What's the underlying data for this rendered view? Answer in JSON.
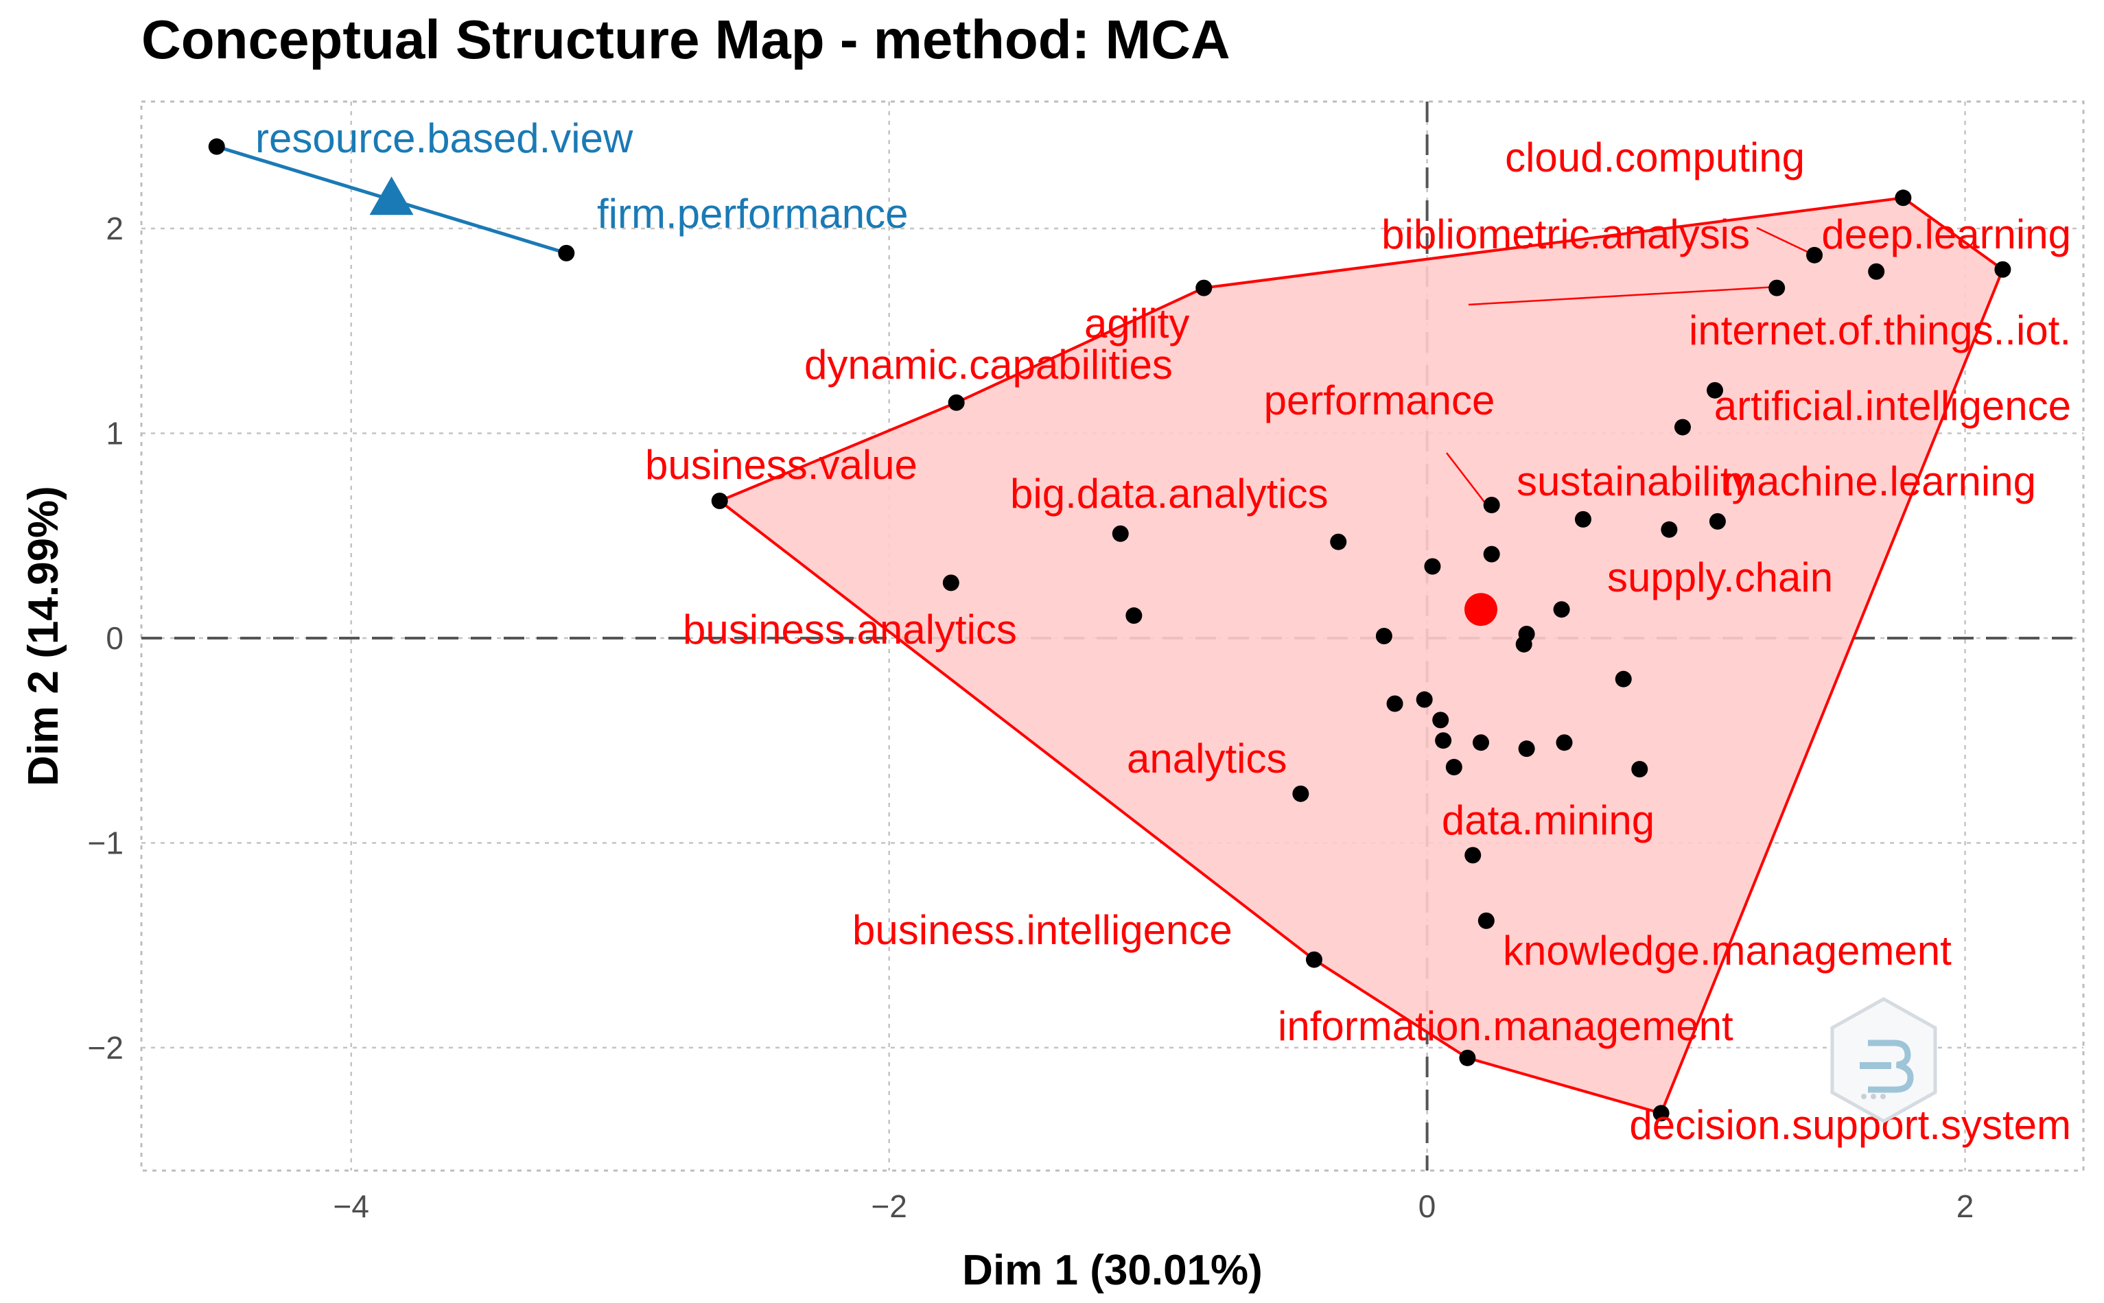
{
  "chart_data": {
    "type": "scatter",
    "title": "Conceptual Structure Map - method: MCA",
    "xlabel": "Dim 1 (30.01%)",
    "ylabel": "Dim 2 (14.99%)",
    "xlim": [
      -4.78,
      2.44
    ],
    "ylim": [
      -2.6,
      2.62
    ],
    "x_ticks": [
      -4,
      -2,
      0,
      2
    ],
    "y_ticks": [
      -2,
      -1,
      0,
      1,
      2
    ],
    "x_tick_labels": [
      "−4",
      "−2",
      "0",
      "2"
    ],
    "y_tick_labels": [
      "−2",
      "−1",
      "0",
      "1",
      "2"
    ],
    "grid": true,
    "clusters": [
      {
        "name": "cluster-red",
        "color": "#ff0000",
        "fill": "#ffcccc",
        "centroid": [
          0.2,
          0.14
        ],
        "centroid_marker": "circle",
        "hull": [
          [
            1.77,
            2.15
          ],
          [
            2.14,
            1.8
          ],
          [
            0.87,
            -2.32
          ],
          [
            0.15,
            -2.05
          ],
          [
            -0.42,
            -1.57
          ],
          [
            -2.63,
            0.67
          ],
          [
            -1.75,
            1.15
          ],
          [
            -0.83,
            1.71
          ]
        ],
        "points": [
          {
            "label": "cloud.computing",
            "x": 1.77,
            "y": 2.15
          },
          {
            "label": "bibliometric.analysis",
            "x": 1.44,
            "y": 1.87
          },
          {
            "label": "deep.learning",
            "x": 2.14,
            "y": 1.8
          },
          {
            "label": "internet.of.things..iot.",
            "x": 1.3,
            "y": 1.71
          },
          {
            "label": "",
            "x": 1.67,
            "y": 1.79
          },
          {
            "label": "agility",
            "x": -0.83,
            "y": 1.71
          },
          {
            "label": "dynamic.capabilities",
            "x": -1.75,
            "y": 1.15
          },
          {
            "label": "artificial.intelligence",
            "x": 1.07,
            "y": 1.21
          },
          {
            "label": "",
            "x": 0.95,
            "y": 1.03
          },
          {
            "label": "business.value",
            "x": -2.63,
            "y": 0.67
          },
          {
            "label": "performance",
            "x": 0.24,
            "y": 0.65
          },
          {
            "label": "sustainability",
            "x": 0.58,
            "y": 0.58
          },
          {
            "label": "machine.learning",
            "x": 1.08,
            "y": 0.57
          },
          {
            "label": "supply.chain",
            "x": 0.9,
            "y": 0.53
          },
          {
            "label": "big.data.analytics",
            "x": -1.14,
            "y": 0.51
          },
          {
            "label": "",
            "x": -0.33,
            "y": 0.47
          },
          {
            "label": "",
            "x": 0.24,
            "y": 0.41
          },
          {
            "label": "",
            "x": 0.02,
            "y": 0.35
          },
          {
            "label": "business.analytics",
            "x": -1.77,
            "y": 0.27
          },
          {
            "label": "",
            "x": 0.5,
            "y": 0.14
          },
          {
            "label": "",
            "x": -1.09,
            "y": 0.11
          },
          {
            "label": "",
            "x": -0.16,
            "y": 0.01
          },
          {
            "label": "",
            "x": 0.37,
            "y": 0.02
          },
          {
            "label": "",
            "x": 0.36,
            "y": -0.03
          },
          {
            "label": "",
            "x": 0.73,
            "y": -0.2
          },
          {
            "label": "",
            "x": -0.01,
            "y": -0.3
          },
          {
            "label": "",
            "x": -0.12,
            "y": -0.32
          },
          {
            "label": "",
            "x": 0.05,
            "y": -0.4
          },
          {
            "label": "",
            "x": 0.06,
            "y": -0.5
          },
          {
            "label": "",
            "x": 0.2,
            "y": -0.51
          },
          {
            "label": "",
            "x": 0.51,
            "y": -0.51
          },
          {
            "label": "",
            "x": 0.37,
            "y": -0.54
          },
          {
            "label": "",
            "x": 0.1,
            "y": -0.63
          },
          {
            "label": "",
            "x": 0.79,
            "y": -0.64
          },
          {
            "label": "analytics",
            "x": -0.47,
            "y": -0.76
          },
          {
            "label": "data.mining",
            "x": 0.17,
            "y": -1.06
          },
          {
            "label": "knowledge.management",
            "x": 0.22,
            "y": -1.38
          },
          {
            "label": "business.intelligence",
            "x": -0.42,
            "y": -1.57
          },
          {
            "label": "information.management",
            "x": 0.15,
            "y": -2.05
          },
          {
            "label": "decision.support.system",
            "x": 0.87,
            "y": -2.32
          }
        ]
      },
      {
        "name": "cluster-blue",
        "color": "#1a7ab5",
        "centroid": [
          -3.85,
          2.14
        ],
        "centroid_marker": "triangle",
        "hull": [
          [
            -4.5,
            2.4
          ],
          [
            -3.2,
            1.88
          ]
        ],
        "points": [
          {
            "label": "resource.based.view",
            "x": -4.5,
            "y": 2.4
          },
          {
            "label": "firm.performance",
            "x": -3.2,
            "y": 1.88
          }
        ]
      }
    ]
  }
}
